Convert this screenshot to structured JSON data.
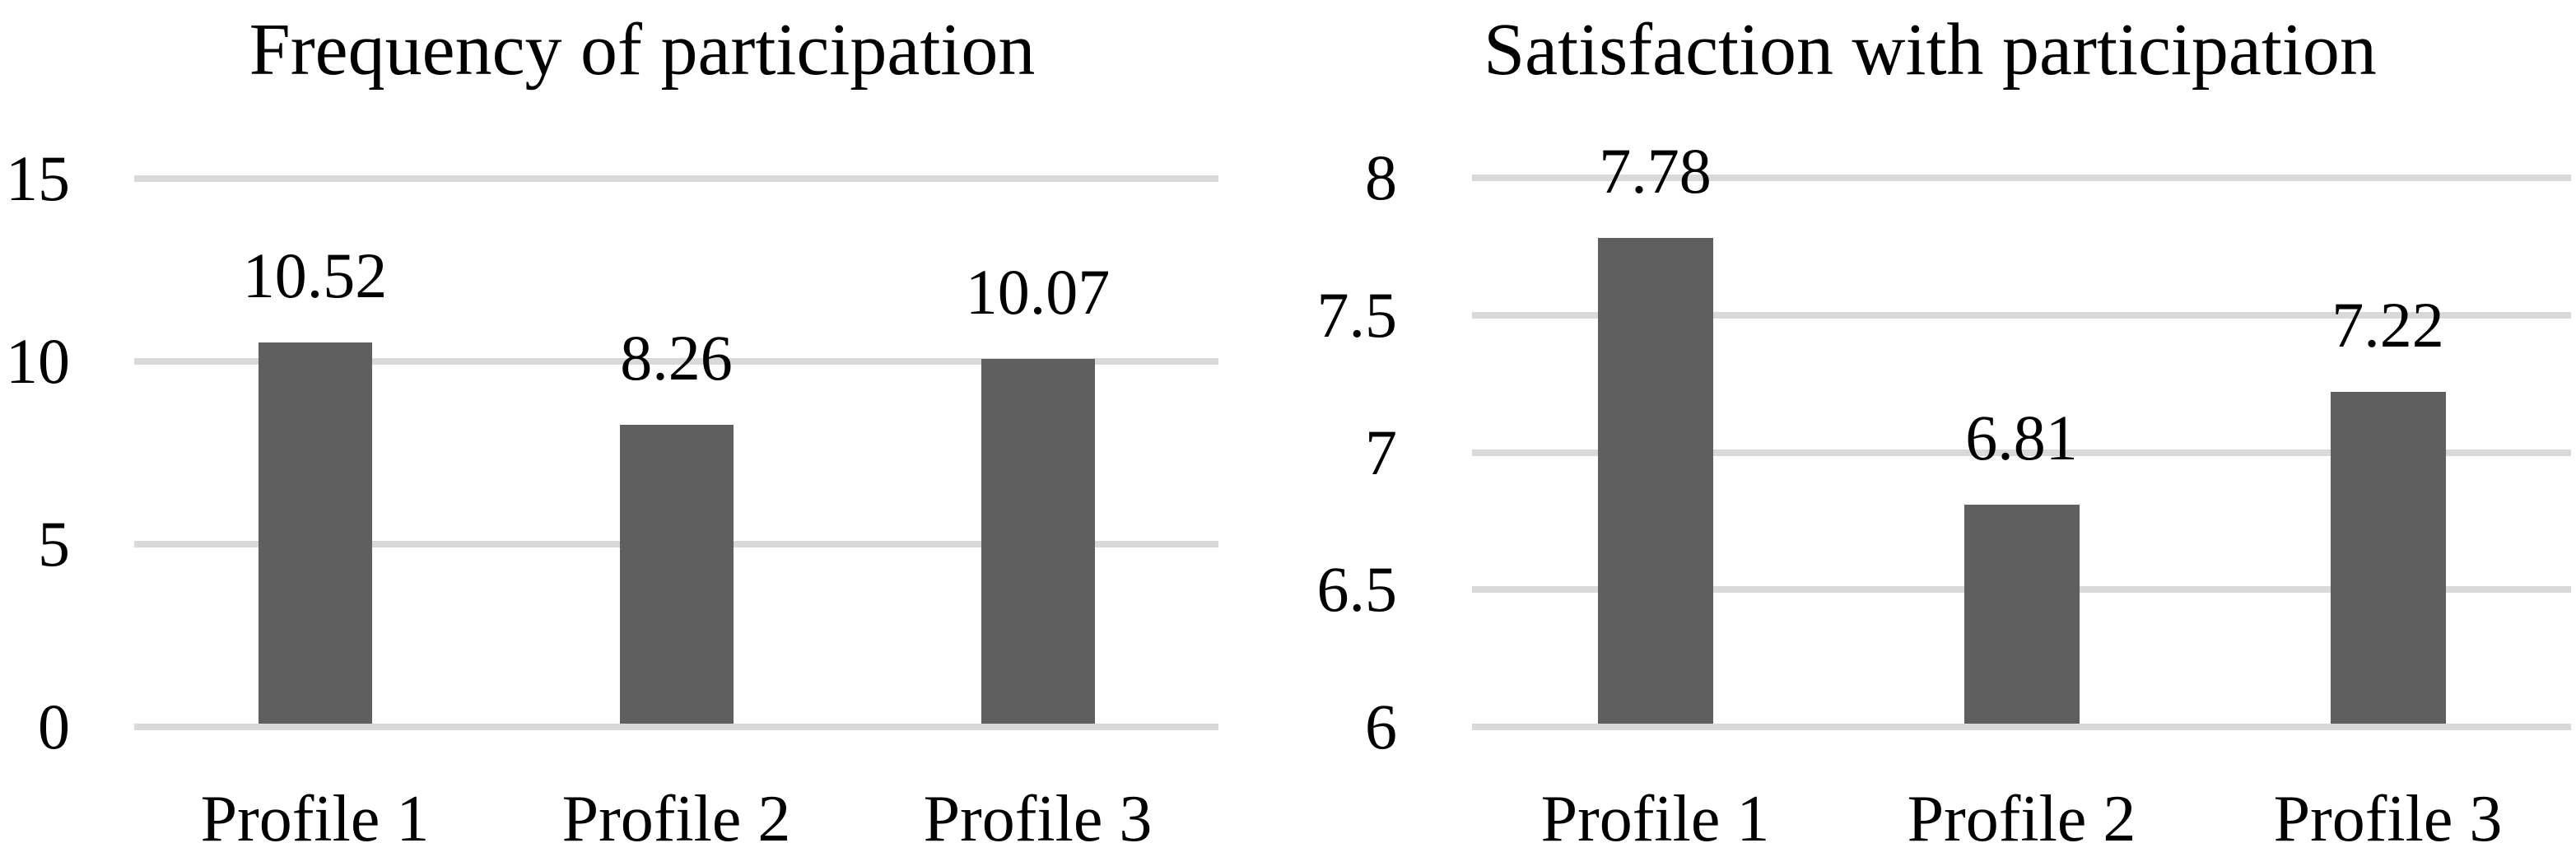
{
  "figure": {
    "background_color": "#ffffff",
    "bar_color": "#5f5f5f",
    "gridline_color": "#d9d9d9",
    "text_color": "#000000"
  },
  "chart_data": [
    {
      "type": "bar",
      "title": "Frequency of participation",
      "categories": [
        "Profile 1",
        "Profile 2",
        "Profile 3"
      ],
      "values": [
        10.52,
        8.26,
        10.07
      ],
      "data_labels": [
        "10.52",
        "8.26",
        "10.07"
      ],
      "xlabel": "",
      "ylabel": "",
      "ylim": [
        0,
        15
      ],
      "yticks": [
        {
          "value": 0,
          "label": "0"
        },
        {
          "value": 5,
          "label": "5"
        },
        {
          "value": 10,
          "label": "10"
        },
        {
          "value": 15,
          "label": "15"
        }
      ],
      "grid": "horizontal",
      "legend": "none"
    },
    {
      "type": "bar",
      "title": "Satisfaction with participation",
      "categories": [
        "Profile 1",
        "Profile 2",
        "Profile 3"
      ],
      "values": [
        7.78,
        6.81,
        7.22
      ],
      "data_labels": [
        "7.78",
        "6.81",
        "7.22"
      ],
      "xlabel": "",
      "ylabel": "",
      "ylim": [
        6,
        8
      ],
      "yticks": [
        {
          "value": 6,
          "label": "6"
        },
        {
          "value": 6.5,
          "label": "6.5"
        },
        {
          "value": 7,
          "label": "7"
        },
        {
          "value": 7.5,
          "label": "7.5"
        },
        {
          "value": 8,
          "label": "8"
        }
      ],
      "grid": "horizontal",
      "legend": "none"
    }
  ]
}
